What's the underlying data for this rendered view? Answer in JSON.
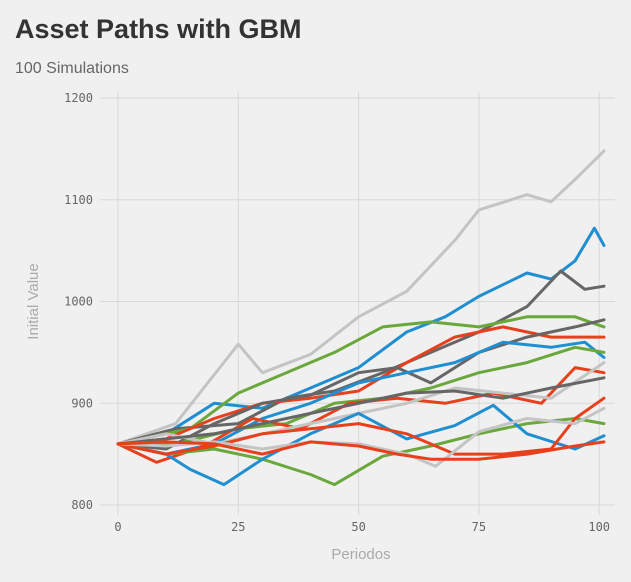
{
  "header": {
    "title": "Asset Paths with GBM",
    "subtitle": "100 Simulations"
  },
  "chart_data": {
    "type": "line",
    "title": "Asset Paths with GBM",
    "subtitle": "100 Simulations",
    "xlabel": "Periodos",
    "ylabel": "Initial Value",
    "xlim": [
      0,
      101
    ],
    "ylim": [
      800,
      1200
    ],
    "xticks": [
      0,
      25,
      50,
      75,
      100
    ],
    "yticks": [
      800,
      900,
      1000,
      1100,
      1200
    ],
    "grid": true,
    "legend": "none",
    "colors": {
      "background": "#f0f0f0",
      "grid": "#d8d8d8",
      "gray": "#666666",
      "lightgray": "#c4c4c4",
      "blue": "#1f8fd2",
      "red": "#e8401c",
      "green": "#6aa83c"
    },
    "series": [
      {
        "color": "#c4c4c4",
        "values": [
          [
            0,
            860
          ],
          [
            12,
            880
          ],
          [
            25,
            958
          ],
          [
            30,
            930
          ],
          [
            40,
            948
          ],
          [
            50,
            985
          ],
          [
            60,
            1010
          ],
          [
            70,
            1060
          ],
          [
            75,
            1090
          ],
          [
            85,
            1105
          ],
          [
            90,
            1098
          ],
          [
            95,
            1120
          ],
          [
            101,
            1148
          ]
        ]
      },
      {
        "color": "#1f8fd2",
        "values": [
          [
            0,
            860
          ],
          [
            10,
            870
          ],
          [
            20,
            900
          ],
          [
            30,
            895
          ],
          [
            40,
            915
          ],
          [
            50,
            935
          ],
          [
            60,
            970
          ],
          [
            68,
            985
          ],
          [
            75,
            1005
          ],
          [
            85,
            1028
          ],
          [
            90,
            1022
          ],
          [
            95,
            1040
          ],
          [
            99,
            1072
          ],
          [
            101,
            1055
          ]
        ]
      },
      {
        "color": "#666666",
        "values": [
          [
            0,
            860
          ],
          [
            12,
            875
          ],
          [
            25,
            880
          ],
          [
            35,
            905
          ],
          [
            45,
            912
          ],
          [
            55,
            930
          ],
          [
            65,
            950
          ],
          [
            75,
            970
          ],
          [
            85,
            995
          ],
          [
            92,
            1030
          ],
          [
            97,
            1012
          ],
          [
            101,
            1015
          ]
        ]
      },
      {
        "color": "#6aa83c",
        "values": [
          [
            0,
            860
          ],
          [
            15,
            875
          ],
          [
            25,
            910
          ],
          [
            35,
            930
          ],
          [
            45,
            950
          ],
          [
            55,
            975
          ],
          [
            65,
            980
          ],
          [
            75,
            975
          ],
          [
            85,
            985
          ],
          [
            95,
            985
          ],
          [
            101,
            975
          ]
        ]
      },
      {
        "color": "#e8401c",
        "values": [
          [
            0,
            860
          ],
          [
            10,
            865
          ],
          [
            20,
            885
          ],
          [
            30,
            900
          ],
          [
            40,
            905
          ],
          [
            50,
            912
          ],
          [
            60,
            940
          ],
          [
            70,
            965
          ],
          [
            80,
            975
          ],
          [
            90,
            965
          ],
          [
            101,
            965
          ]
        ]
      },
      {
        "color": "#666666",
        "values": [
          [
            0,
            860
          ],
          [
            10,
            855
          ],
          [
            20,
            880
          ],
          [
            30,
            900
          ],
          [
            40,
            908
          ],
          [
            50,
            930
          ],
          [
            58,
            935
          ],
          [
            65,
            920
          ],
          [
            75,
            950
          ],
          [
            85,
            965
          ],
          [
            95,
            975
          ],
          [
            101,
            982
          ]
        ]
      },
      {
        "color": "#1f8fd2",
        "values": [
          [
            0,
            860
          ],
          [
            10,
            850
          ],
          [
            20,
            860
          ],
          [
            30,
            885
          ],
          [
            40,
            900
          ],
          [
            50,
            920
          ],
          [
            60,
            930
          ],
          [
            70,
            940
          ],
          [
            80,
            960
          ],
          [
            90,
            955
          ],
          [
            97,
            960
          ],
          [
            101,
            945
          ]
        ]
      },
      {
        "color": "#6aa83c",
        "values": [
          [
            0,
            860
          ],
          [
            12,
            860
          ],
          [
            25,
            875
          ],
          [
            35,
            880
          ],
          [
            45,
            900
          ],
          [
            55,
            905
          ],
          [
            65,
            915
          ],
          [
            75,
            930
          ],
          [
            85,
            940
          ],
          [
            95,
            955
          ],
          [
            101,
            950
          ]
        ]
      },
      {
        "color": "#e8401c",
        "values": [
          [
            0,
            860
          ],
          [
            8,
            842
          ],
          [
            18,
            858
          ],
          [
            28,
            885
          ],
          [
            38,
            875
          ],
          [
            48,
            900
          ],
          [
            58,
            905
          ],
          [
            68,
            900
          ],
          [
            78,
            910
          ],
          [
            88,
            900
          ],
          [
            95,
            935
          ],
          [
            101,
            930
          ]
        ]
      },
      {
        "color": "#c4c4c4",
        "values": [
          [
            0,
            860
          ],
          [
            10,
            870
          ],
          [
            20,
            860
          ],
          [
            30,
            870
          ],
          [
            40,
            880
          ],
          [
            50,
            890
          ],
          [
            60,
            900
          ],
          [
            70,
            915
          ],
          [
            80,
            910
          ],
          [
            90,
            905
          ],
          [
            101,
            940
          ]
        ]
      },
      {
        "color": "#666666",
        "values": [
          [
            0,
            860
          ],
          [
            10,
            865
          ],
          [
            20,
            870
          ],
          [
            30,
            880
          ],
          [
            40,
            890
          ],
          [
            50,
            900
          ],
          [
            60,
            910
          ],
          [
            70,
            912
          ],
          [
            80,
            905
          ],
          [
            90,
            915
          ],
          [
            101,
            925
          ]
        ]
      },
      {
        "color": "#6aa83c",
        "values": [
          [
            0,
            860
          ],
          [
            10,
            850
          ],
          [
            20,
            855
          ],
          [
            30,
            845
          ],
          [
            40,
            830
          ],
          [
            45,
            820
          ],
          [
            55,
            848
          ],
          [
            65,
            858
          ],
          [
            75,
            870
          ],
          [
            85,
            880
          ],
          [
            95,
            885
          ],
          [
            101,
            880
          ]
        ]
      },
      {
        "color": "#1f8fd2",
        "values": [
          [
            0,
            860
          ],
          [
            10,
            850
          ],
          [
            15,
            835
          ],
          [
            22,
            820
          ],
          [
            30,
            845
          ],
          [
            40,
            870
          ],
          [
            50,
            890
          ],
          [
            60,
            865
          ],
          [
            70,
            878
          ],
          [
            78,
            898
          ],
          [
            85,
            870
          ],
          [
            95,
            855
          ],
          [
            101,
            868
          ]
        ]
      },
      {
        "color": "#e8401c",
        "values": [
          [
            0,
            860
          ],
          [
            10,
            850
          ],
          [
            20,
            858
          ],
          [
            30,
            870
          ],
          [
            40,
            875
          ],
          [
            50,
            880
          ],
          [
            60,
            870
          ],
          [
            70,
            850
          ],
          [
            80,
            850
          ],
          [
            90,
            855
          ],
          [
            95,
            885
          ],
          [
            101,
            905
          ]
        ]
      },
      {
        "color": "#c4c4c4",
        "values": [
          [
            0,
            860
          ],
          [
            10,
            858
          ],
          [
            20,
            862
          ],
          [
            30,
            855
          ],
          [
            40,
            862
          ],
          [
            50,
            860
          ],
          [
            60,
            850
          ],
          [
            66,
            838
          ],
          [
            75,
            872
          ],
          [
            85,
            885
          ],
          [
            95,
            880
          ],
          [
            101,
            895
          ]
        ]
      },
      {
        "color": "#e8401c",
        "values": [
          [
            0,
            860
          ],
          [
            10,
            862
          ],
          [
            20,
            860
          ],
          [
            30,
            850
          ],
          [
            40,
            862
          ],
          [
            50,
            858
          ],
          [
            58,
            850
          ],
          [
            65,
            845
          ],
          [
            75,
            845
          ],
          [
            85,
            850
          ],
          [
            95,
            858
          ],
          [
            101,
            862
          ]
        ]
      }
    ]
  },
  "icons": {}
}
